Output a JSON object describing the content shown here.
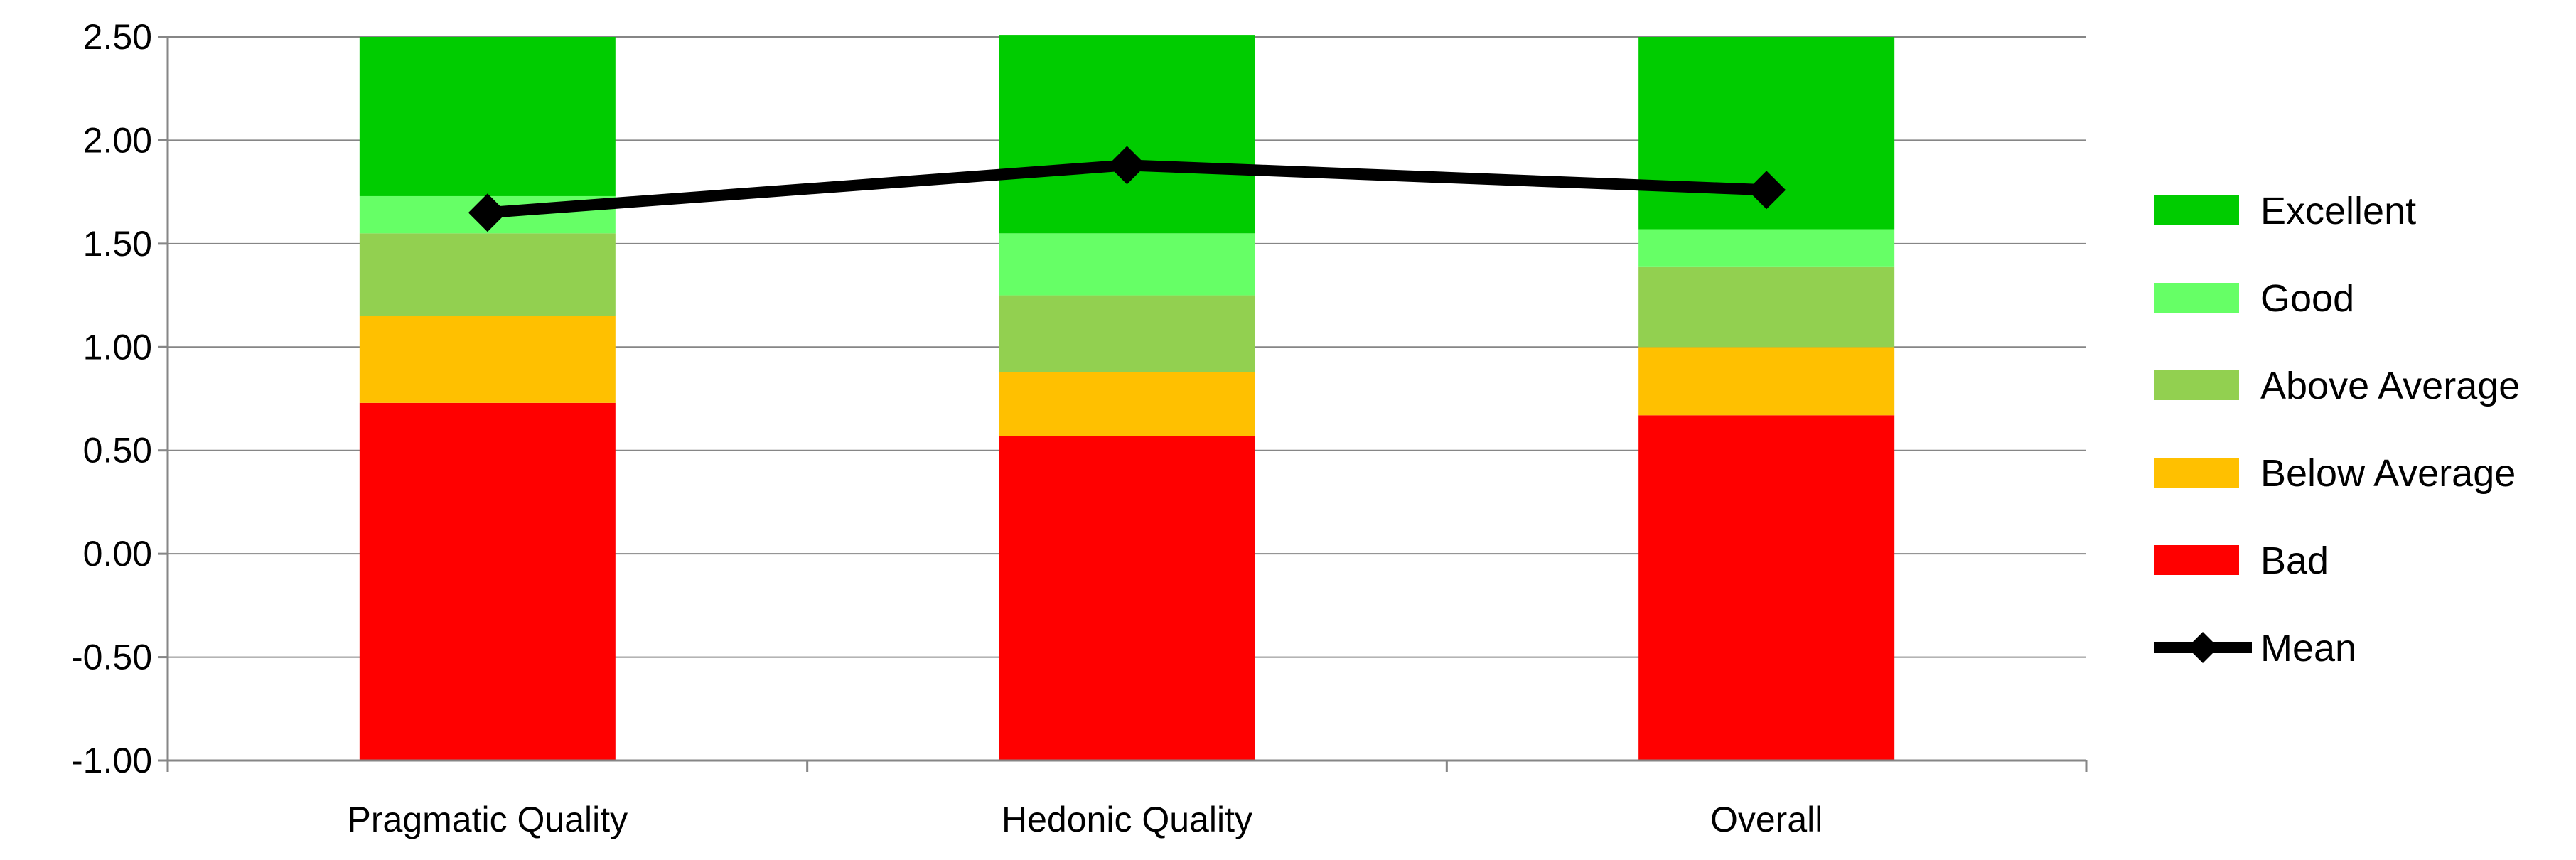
{
  "chart_data": {
    "type": "bar",
    "stacked": true,
    "categories": [
      "Pragmatic Quality",
      "Hedonic Quality",
      "Overall"
    ],
    "ylim": [
      -1.0,
      2.5
    ],
    "yticks": [
      "2.50",
      "2.00",
      "1.50",
      "1.00",
      "0.50",
      "0.00",
      "-0.50",
      "-1.00"
    ],
    "ytick_values": [
      2.5,
      2.0,
      1.5,
      1.0,
      0.5,
      0.0,
      -0.5,
      -1.0
    ],
    "grid": true,
    "legend_position": "right",
    "series": [
      {
        "name": "Bad",
        "color": "#FF0000",
        "upper": [
          0.73,
          0.57,
          0.67
        ]
      },
      {
        "name": "Below Average",
        "color": "#FFC000",
        "upper": [
          1.15,
          0.88,
          1.0
        ]
      },
      {
        "name": "Above Average",
        "color": "#92D050",
        "upper": [
          1.55,
          1.25,
          1.39
        ]
      },
      {
        "name": "Good",
        "color": "#66FF66",
        "upper": [
          1.73,
          1.55,
          1.57
        ]
      },
      {
        "name": "Excellent",
        "color": "#00CC00",
        "upper": [
          2.5,
          2.51,
          2.5
        ]
      }
    ],
    "mean": {
      "name": "Mean",
      "color": "#000000",
      "values": [
        1.65,
        1.88,
        1.76
      ]
    },
    "legend_order": [
      "Excellent",
      "Good",
      "Above Average",
      "Below Average",
      "Bad",
      "Mean"
    ]
  }
}
